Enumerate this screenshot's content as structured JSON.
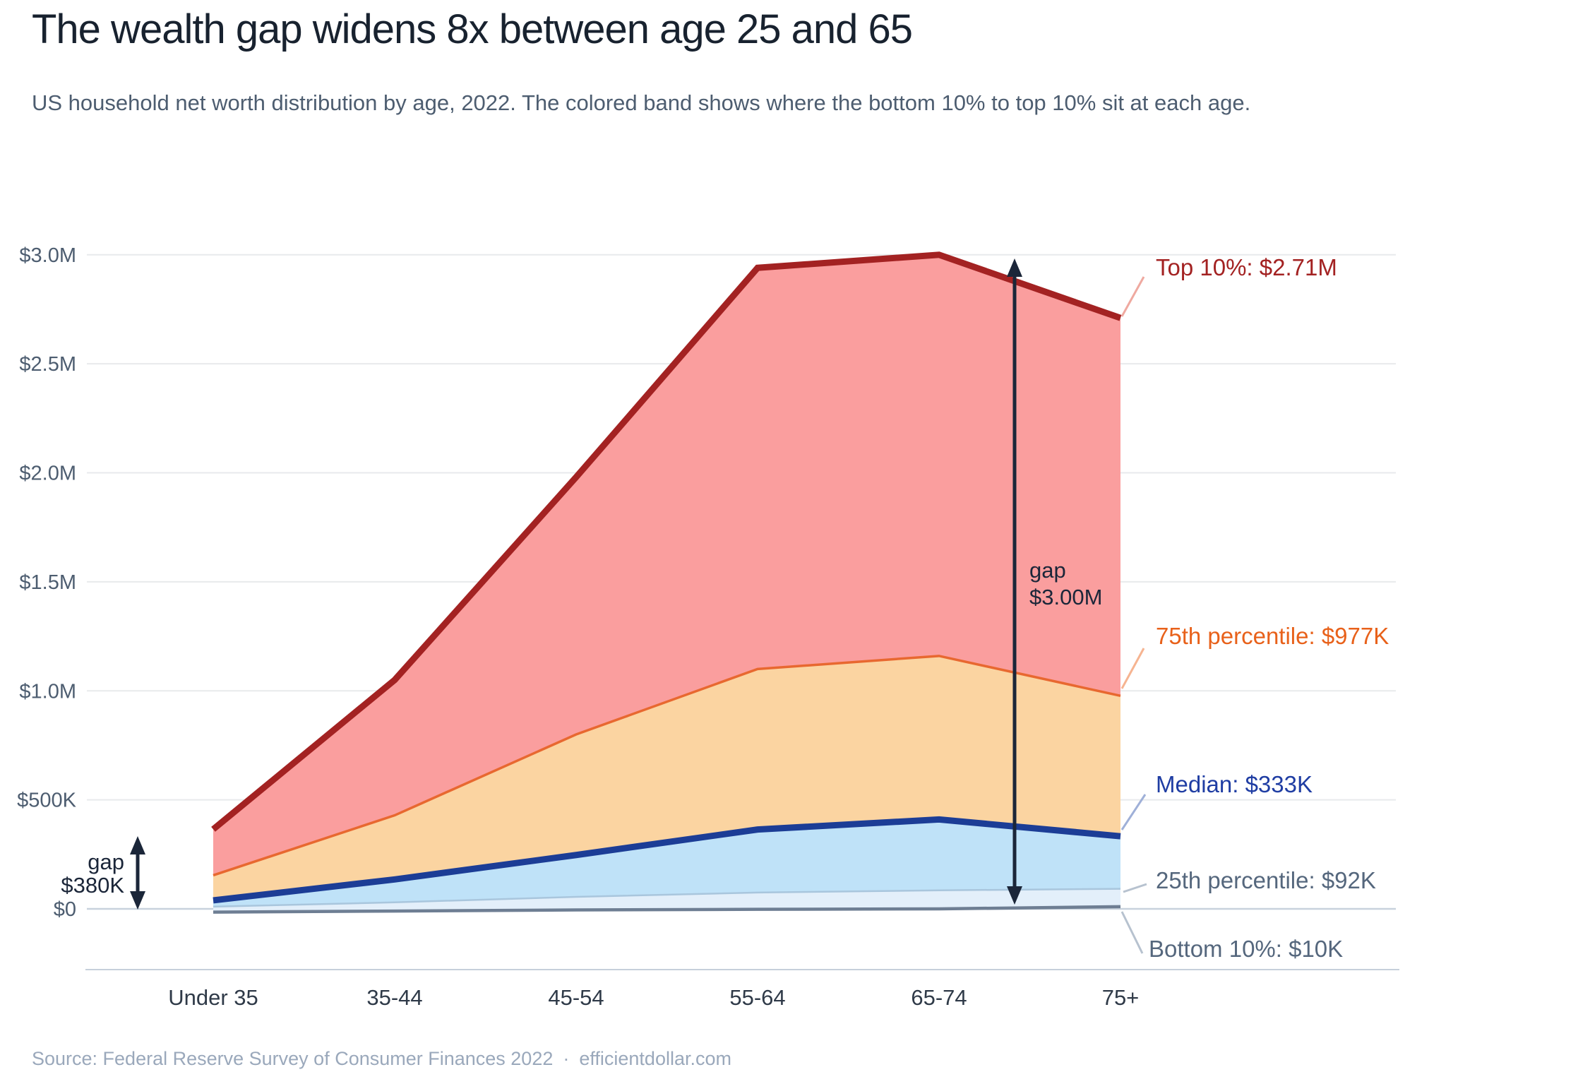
{
  "header": {
    "title": "The wealth gap widens 8x between age 25 and 65",
    "subtitle": "US household net worth distribution by age, 2022. The colored band shows where the bottom 10% to top 10% sit at each age."
  },
  "source": {
    "label": "Source: Federal Reserve Survey of Consumer Finances 2022",
    "separator": "·",
    "site": "efficientdollar.com"
  },
  "chart_data": {
    "type": "area",
    "title": "US household net worth distribution by age, 2022",
    "categories": [
      "Under 35",
      "35-44",
      "45-54",
      "55-64",
      "65-74",
      "75+"
    ],
    "unit": "USD thousands",
    "series": [
      {
        "name": "Top 10%",
        "values": [
          365,
          1050,
          1980,
          2940,
          3000,
          2710
        ]
      },
      {
        "name": "75th percentile",
        "values": [
          154,
          429,
          800,
          1100,
          1160,
          977
        ]
      },
      {
        "name": "Median",
        "values": [
          39,
          135,
          247,
          364,
          410,
          333
        ]
      },
      {
        "name": "25th percentile",
        "values": [
          10,
          30,
          55,
          75,
          85,
          92
        ]
      },
      {
        "name": "Bottom 10%",
        "values": [
          -15,
          -10,
          -5,
          -2,
          0,
          10
        ]
      }
    ],
    "ylim": [
      -100,
      3100
    ],
    "grid": true,
    "legend_position": "direct-labels-right",
    "yticks": [
      {
        "label": "$0",
        "value": 0
      },
      {
        "label": "$500K",
        "value": 500
      },
      {
        "label": "$1.0M",
        "value": 1000
      },
      {
        "label": "$1.5M",
        "value": 1500
      },
      {
        "label": "$2.0M",
        "value": 2000
      },
      {
        "label": "$2.5M",
        "value": 2500
      },
      {
        "label": "$3.0M",
        "value": 3000
      }
    ],
    "end_labels": [
      {
        "text": "Top 10%: $2.71M",
        "color": "#A32222",
        "leader_color": "#EFA9A0"
      },
      {
        "text": "75th percentile: $977K",
        "color": "#E8611A",
        "leader_color": "#F6B491"
      },
      {
        "text": "Median: $333K",
        "color": "#1F3DA3",
        "leader_color": "#9FB0D8"
      },
      {
        "text": "25th percentile: $92K",
        "color": "#55677D",
        "leader_color": "#B7C2CF"
      },
      {
        "text": "Bottom 10%: $10K",
        "color": "#55677D",
        "leader_color": "#B7C2CF"
      }
    ],
    "gap_annotations": {
      "left": {
        "line1": "gap",
        "line2": "$380K",
        "at_category": "Under 35"
      },
      "right": {
        "line1": "gap",
        "line2": "$3.00M",
        "at_category": "65-74"
      }
    }
  },
  "colors": {
    "band_top10_fill": "#FA9E9E",
    "band_75th_fill": "#FBD4A1",
    "band_median_fill": "#BFE2F8",
    "band_bottom_fill": "#E3EFFA",
    "line_top10": "#A32222",
    "line_75th": "#E86830",
    "line_median": "#1C3D96",
    "line_25th": "#A9C6DD",
    "line_bottom10": "#6E7E93",
    "grid": "#E8EAEC",
    "grid_zero": "#C8D2DD",
    "axis_line": "#C6D0DB",
    "axis_label": "#4D5D70",
    "tick_label": "#2F3A48",
    "gap_annotation": "#1B2639"
  }
}
